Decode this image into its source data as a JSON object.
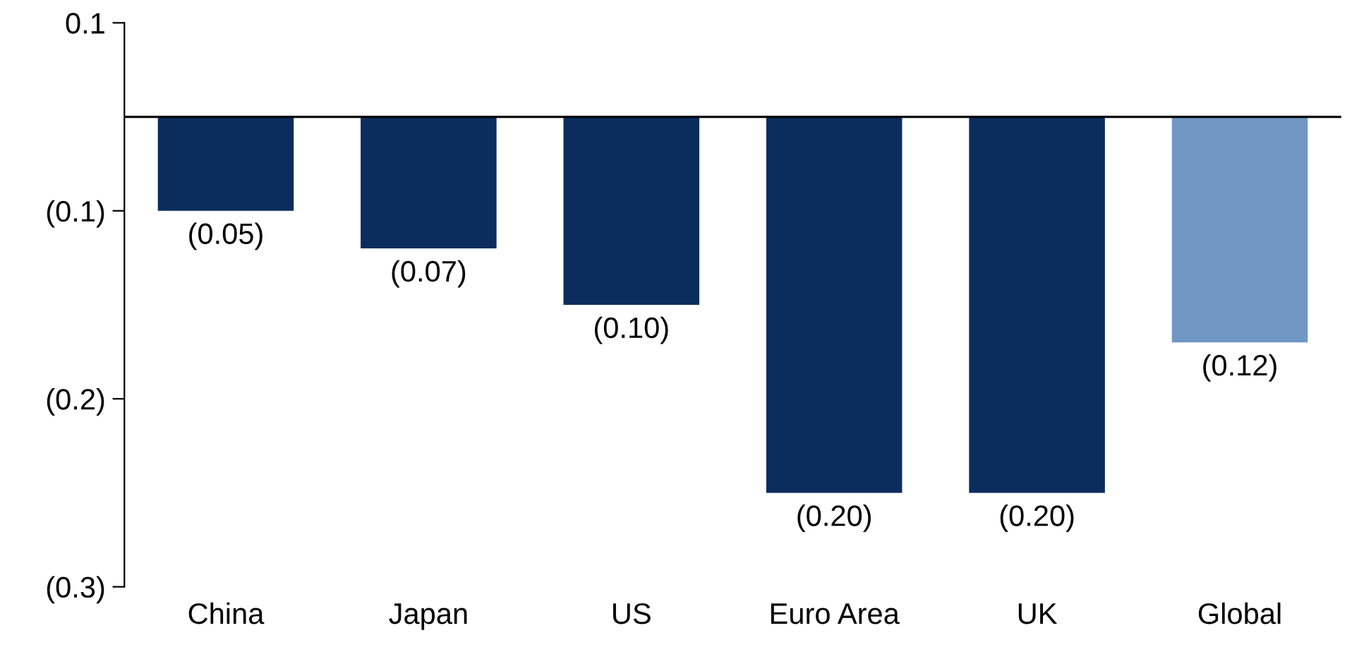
{
  "chart_data": {
    "type": "bar",
    "categories": [
      "China",
      "Japan",
      "US",
      "Euro Area",
      "UK",
      "Global"
    ],
    "values": [
      -0.05,
      -0.07,
      -0.1,
      -0.2,
      -0.2,
      -0.12
    ],
    "colors": [
      "#0b2d5e",
      "#0b2d5e",
      "#0b2d5e",
      "#0b2d5e",
      "#0b2d5e",
      "#7097c4"
    ],
    "value_labels": [
      "(0.05)",
      "(0.07)",
      "(0.10)",
      "(0.20)",
      "(0.20)",
      "(0.12)"
    ],
    "ylim": [
      -0.25,
      0.05
    ],
    "yticks": [
      {
        "value": 0.05,
        "label": "0.1"
      },
      {
        "value": -0.05,
        "label": "(0.1)"
      },
      {
        "value": -0.15,
        "label": "(0.2)"
      },
      {
        "value": -0.25,
        "label": "(0.3)"
      }
    ],
    "ref_lines": [
      {
        "axis": "y",
        "value": 0,
        "color": "#000000"
      }
    ],
    "grid": false,
    "legend": false
  }
}
